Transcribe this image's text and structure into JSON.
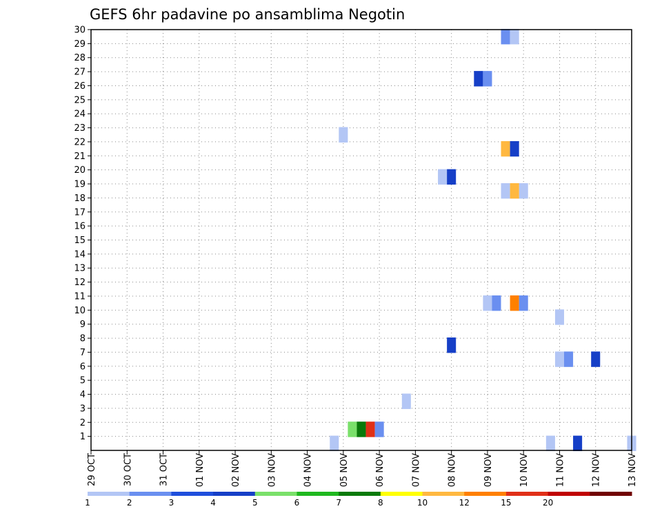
{
  "chart_data": {
    "type": "heatmap",
    "title": "GEFS 6hr padavine po ansamblima Negotin",
    "x_tick_labels": [
      "29 OCT",
      "30 OCT",
      "31 OCT",
      "01 NOV",
      "02 NOV",
      "03 NOV",
      "04 NOV",
      "05 NOV",
      "06 NOV",
      "07 NOV",
      "08 NOV",
      "09 NOV",
      "10 NOV",
      "11 NOV",
      "12 NOV",
      "13 NOV"
    ],
    "x_unit": "days since 29 OCT 00z (6-hourly steps)",
    "xlim": [
      0,
      15
    ],
    "y_tick_labels": [
      "1",
      "2",
      "3",
      "4",
      "5",
      "6",
      "7",
      "8",
      "9",
      "10",
      "11",
      "12",
      "13",
      "14",
      "15",
      "16",
      "17",
      "18",
      "19",
      "20",
      "21",
      "22",
      "23",
      "24",
      "25",
      "26",
      "27",
      "28",
      "29",
      "30"
    ],
    "ylim": [
      0,
      30
    ],
    "grid": true,
    "colorbar": {
      "labels": [
        "1",
        "2",
        "3",
        "4",
        "5",
        "6",
        "7",
        "8",
        "10",
        "12",
        "15",
        "20"
      ],
      "colors": [
        "#b3c6f5",
        "#6a8ff0",
        "#1f4fdc",
        "#163fc7",
        "#7ae06a",
        "#1fb81f",
        "#0a7a0a",
        "#ffff00",
        "#ffb840",
        "#ff8000",
        "#e03018",
        "#c00000",
        "#700000"
      ]
    },
    "cells": [
      {
        "member": 1,
        "t": 6.75,
        "v": 1
      },
      {
        "member": 1,
        "t": 12.75,
        "v": 1
      },
      {
        "member": 1,
        "t": 13.5,
        "v": 4
      },
      {
        "member": 1,
        "t": 15.0,
        "v": 1
      },
      {
        "member": 2,
        "t": 7.25,
        "v": 5
      },
      {
        "member": 2,
        "t": 7.5,
        "v": 7
      },
      {
        "member": 2,
        "t": 7.75,
        "v": 15
      },
      {
        "member": 2,
        "t": 8.0,
        "v": 2
      },
      {
        "member": 4,
        "t": 8.75,
        "v": 1
      },
      {
        "member": 7,
        "t": 13.0,
        "v": 1
      },
      {
        "member": 7,
        "t": 13.25,
        "v": 2
      },
      {
        "member": 7,
        "t": 14.0,
        "v": 4
      },
      {
        "member": 8,
        "t": 10.0,
        "v": 4
      },
      {
        "member": 10,
        "t": 13.0,
        "v": 1
      },
      {
        "member": 11,
        "t": 11.0,
        "v": 1
      },
      {
        "member": 11,
        "t": 11.25,
        "v": 2
      },
      {
        "member": 11,
        "t": 11.75,
        "v": 12
      },
      {
        "member": 11,
        "t": 12.0,
        "v": 2
      },
      {
        "member": 19,
        "t": 12.0,
        "v": 1
      },
      {
        "member": 19,
        "t": 11.5,
        "v": 1
      },
      {
        "member": 19,
        "t": 11.75,
        "v": 10
      },
      {
        "member": 20,
        "t": 9.75,
        "v": 1
      },
      {
        "member": 20,
        "t": 10.0,
        "v": 4
      },
      {
        "member": 22,
        "t": 11.5,
        "v": 10
      },
      {
        "member": 22,
        "t": 11.75,
        "v": 4
      },
      {
        "member": 23,
        "t": 7.0,
        "v": 1
      },
      {
        "member": 27,
        "t": 10.75,
        "v": 4
      },
      {
        "member": 27,
        "t": 11.0,
        "v": 2
      },
      {
        "member": 30,
        "t": 11.5,
        "v": 2
      },
      {
        "member": 30,
        "t": 11.75,
        "v": 1
      }
    ]
  }
}
